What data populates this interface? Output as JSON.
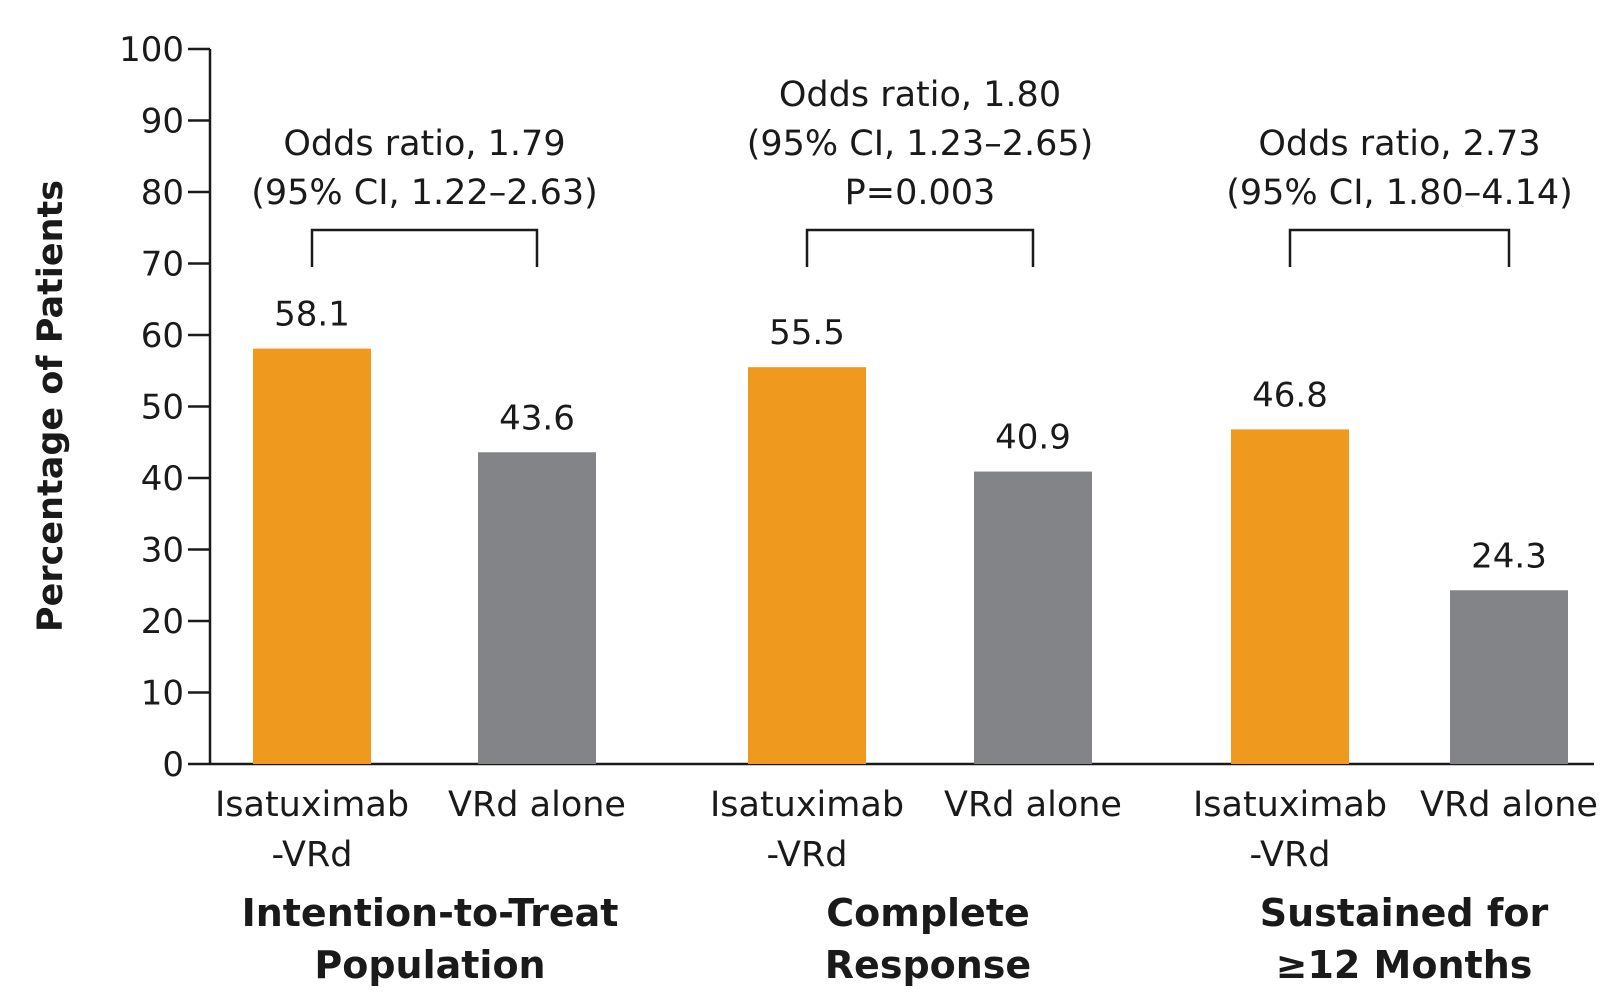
{
  "chart_data": {
    "type": "bar",
    "ylabel": "Percentage of Patients",
    "ylim": [
      0,
      100
    ],
    "yticks": [
      "0",
      "10",
      "20",
      "30",
      "40",
      "50",
      "60",
      "70",
      "80",
      "90",
      "100"
    ],
    "grid": false,
    "colors": {
      "isatuximab": "#ef9a1e",
      "vrd": "#838487",
      "axis": "#1a1a1a"
    },
    "groups": [
      {
        "title_lines": [
          "Intention-to-Treat",
          "Population"
        ],
        "bars": [
          {
            "label_lines": [
              "Isatuximab",
              "-VRd"
            ],
            "value": 58.1,
            "value_label": "58.1",
            "series": "isatuximab"
          },
          {
            "label_lines": [
              "VRd alone"
            ],
            "value": 43.6,
            "value_label": "43.6",
            "series": "vrd"
          }
        ],
        "annotation_lines": [
          "Odds ratio, 1.79",
          "(95% CI, 1.22–2.63)"
        ]
      },
      {
        "title_lines": [
          "Complete",
          "Response"
        ],
        "bars": [
          {
            "label_lines": [
              "Isatuximab",
              "-VRd"
            ],
            "value": 55.5,
            "value_label": "55.5",
            "series": "isatuximab"
          },
          {
            "label_lines": [
              "VRd alone"
            ],
            "value": 40.9,
            "value_label": "40.9",
            "series": "vrd"
          }
        ],
        "annotation_lines": [
          "Odds ratio, 1.80",
          "(95% CI, 1.23–2.65)",
          "P=0.003"
        ]
      },
      {
        "title_lines": [
          "Sustained for",
          "≥12 Months"
        ],
        "bars": [
          {
            "label_lines": [
              "Isatuximab",
              "-VRd"
            ],
            "value": 46.8,
            "value_label": "46.8",
            "series": "isatuximab"
          },
          {
            "label_lines": [
              "VRd alone"
            ],
            "value": 24.3,
            "value_label": "24.3",
            "series": "vrd"
          }
        ],
        "annotation_lines": [
          "Odds ratio, 2.73",
          "(95% CI, 1.80–4.14)"
        ]
      }
    ]
  }
}
